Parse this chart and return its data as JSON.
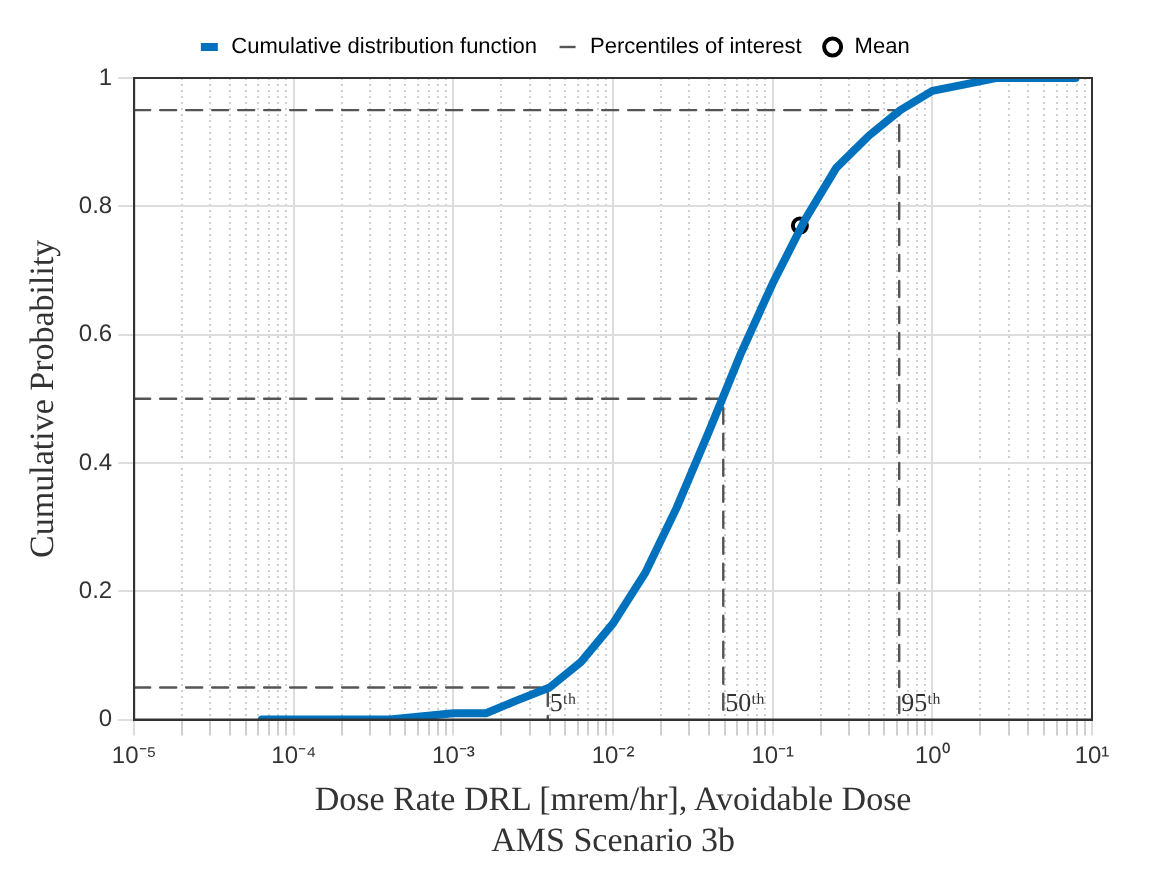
{
  "chart_data": {
    "type": "line",
    "xlabel": "Dose Rate DRL [mrem/hr], Avoidable Dose\nAMS Scenario 3b",
    "ylabel": "Cumulative Probability",
    "log": "x",
    "xlim": [
      1e-05,
      10
    ],
    "xticks": [
      {
        "value": 1e-05,
        "label": "10⁻⁵"
      },
      {
        "value": 0.0001,
        "label": "10⁻⁴"
      },
      {
        "value": 0.001,
        "label": "10⁻³"
      },
      {
        "value": 0.01,
        "label": "10⁻²"
      },
      {
        "value": 0.1,
        "label": "10⁻¹"
      },
      {
        "value": 1,
        "label": "10⁰"
      },
      {
        "value": 10,
        "label": "10¹"
      }
    ],
    "ylim": [
      0,
      1
    ],
    "yticks": [
      0,
      0.2,
      0.4,
      0.6,
      0.8,
      1
    ],
    "grid": true,
    "legend": "top",
    "series": [
      {
        "name": "Cumulative distribution function",
        "color": "#0072bd",
        "marker": "none",
        "line_style": "solid",
        "x": [
          6.3e-05,
          0.00016,
          0.0004,
          0.001,
          0.0016,
          0.0025,
          0.004,
          0.0063,
          0.01,
          0.016,
          0.025,
          0.04,
          0.063,
          0.1,
          0.16,
          0.25,
          0.4,
          0.63,
          1,
          1.6,
          2.5,
          4,
          7.9
        ],
        "values": [
          0,
          0,
          0,
          0.01,
          0.01,
          0.03,
          0.05,
          0.09,
          0.15,
          0.23,
          0.33,
          0.45,
          0.57,
          0.68,
          0.78,
          0.86,
          0.91,
          0.95,
          0.98,
          0.99,
          1,
          1,
          1
        ]
      },
      {
        "name": "Percentiles of interest",
        "color": "#555555",
        "marker": "none",
        "line_style": "dashed",
        "x": [
          1e-05,
          0.0039,
          0.0039
        ],
        "values": [
          0.05,
          0.05,
          0
        ]
      },
      {
        "color": "#555555",
        "marker": "none",
        "line_style": "dashed",
        "x": [
          1e-05,
          0.049,
          0.049
        ],
        "values": [
          0.5,
          0.5,
          0
        ]
      },
      {
        "color": "#555555",
        "marker": "none",
        "line_style": "dashed",
        "x": [
          1e-05,
          0.62,
          0.62
        ],
        "values": [
          0.95,
          0.95,
          0
        ]
      },
      {
        "name": "Mean",
        "type": "scatter",
        "color": "#000000",
        "marker": "circle",
        "x": [
          0.148
        ],
        "values": [
          0.77
        ]
      }
    ],
    "annotations": [
      {
        "text": "5ᵗʰ",
        "x": 0.0039,
        "y": 0
      },
      {
        "text": "50ᵗʰ",
        "x": 0.049,
        "y": 0
      },
      {
        "text": "95ᵗʰ",
        "x": 0.62,
        "y": 0
      }
    ]
  }
}
